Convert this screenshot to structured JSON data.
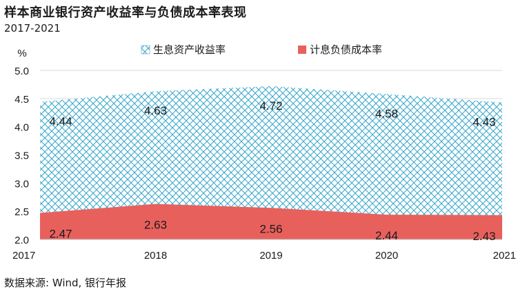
{
  "title": "样本商业银行资产收益率与负债成本率表现",
  "subtitle": "2017-2021",
  "source": "数据来源: Wind, 银行年报",
  "colors": {
    "asset_pattern": "#3aa8cc",
    "cost_fill": "#e8605c",
    "text": "#1a1a1a",
    "grid": "#d9d9d9"
  },
  "chart_data": {
    "type": "area",
    "x": [
      2017,
      2018,
      2019,
      2020,
      2021
    ],
    "categories": [
      "2017",
      "2018",
      "2019",
      "2020",
      "2021"
    ],
    "y_unit_label": "%",
    "ylim": [
      2.0,
      5.0
    ],
    "yticks": [
      "2.0",
      "2.5",
      "3.0",
      "3.5",
      "4.0",
      "4.5",
      "5.0"
    ],
    "grid": "horizontal",
    "legend_position": "top",
    "series": [
      {
        "name": "生息资产收益率",
        "values": [
          4.44,
          4.63,
          4.72,
          4.58,
          4.43
        ],
        "labels": [
          "4.44",
          "4.63",
          "4.72",
          "4.58",
          "4.43"
        ],
        "fill": "pattern"
      },
      {
        "name": "计息负债成本率",
        "values": [
          2.47,
          2.63,
          2.56,
          2.44,
          2.43
        ],
        "labels": [
          "2.47",
          "2.63",
          "2.56",
          "2.44",
          "2.43"
        ],
        "fill": "solid"
      }
    ]
  }
}
